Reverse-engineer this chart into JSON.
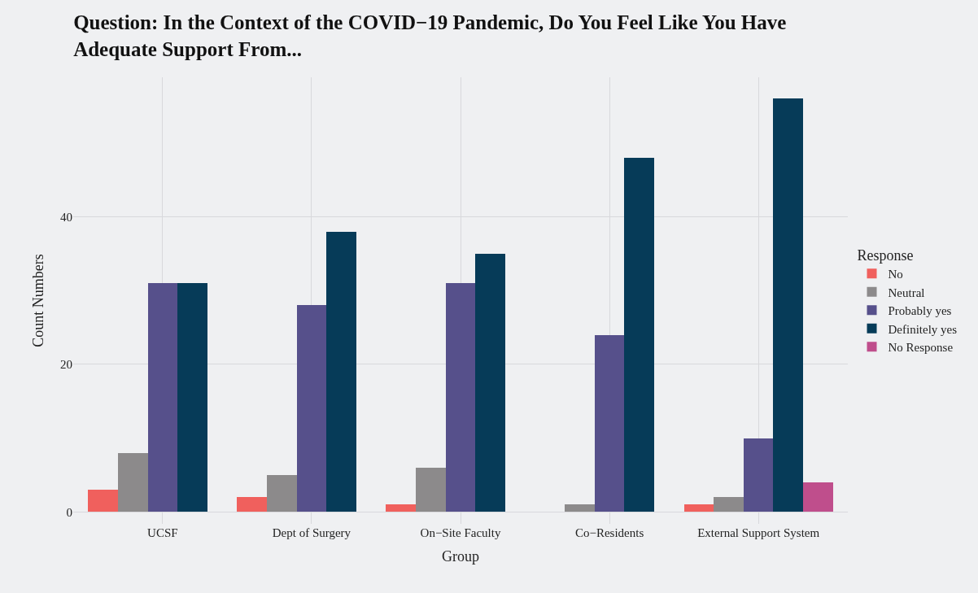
{
  "chart_data": {
    "type": "bar",
    "title": "Question: In the Context of the COVID−19 Pandemic, Do You Feel Like You Have\nAdequate Support From...",
    "xlabel": "Group",
    "ylabel": "Count Numbers",
    "legend_title": "Response",
    "categories": [
      "UCSF",
      "Dept of Surgery",
      "On−Site Faculty",
      "Co−Residents",
      "External Support System"
    ],
    "series": [
      {
        "name": "No",
        "color": "#f0605d",
        "values": [
          3,
          2,
          1,
          null,
          1
        ]
      },
      {
        "name": "Neutral",
        "color": "#8c8a8b",
        "values": [
          8,
          5,
          6,
          1,
          2
        ]
      },
      {
        "name": "Probably yes",
        "color": "#56508b",
        "values": [
          31,
          28,
          31,
          24,
          10
        ]
      },
      {
        "name": "Definitely yes",
        "color": "#063b58",
        "values": [
          31,
          38,
          35,
          48,
          56
        ]
      },
      {
        "name": "No Response",
        "color": "#bf4e8c",
        "values": [
          null,
          null,
          null,
          null,
          4
        ]
      }
    ],
    "ylim": [
      -1.6,
      58.9
    ],
    "yticks": [
      0,
      20,
      40
    ],
    "grid": true,
    "legend": "right"
  }
}
